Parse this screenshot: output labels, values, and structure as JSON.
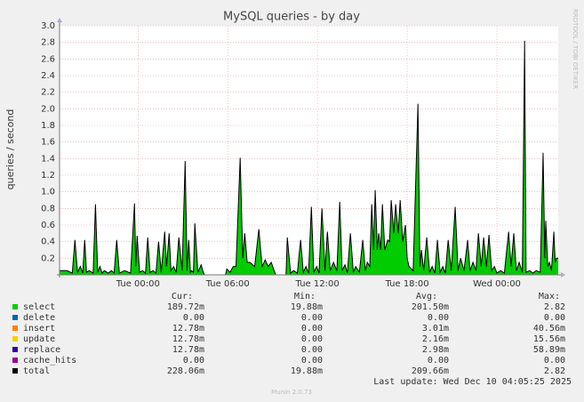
{
  "chart_data": {
    "type": "area",
    "title": "MySQL queries - by day",
    "y_label": "queries / second",
    "watermark": "RRDTOOL / TOBI OETIKER",
    "last_update": "Last update: Wed Dec 10 04:05:25 2025",
    "footer": "Munin 2.0.73",
    "columns": [
      "Cur:",
      "Min:",
      "Avg:",
      "Max:"
    ],
    "grid": true,
    "xlim": [
      -5.25,
      28.1
    ],
    "xticks": [
      {
        "value": 0,
        "label": "Tue 00:00"
      },
      {
        "value": 6,
        "label": "Tue 06:00"
      },
      {
        "value": 12,
        "label": "Tue 12:00"
      },
      {
        "value": 18,
        "label": "Tue 18:00"
      },
      {
        "value": 24,
        "label": "Wed 00:00"
      }
    ],
    "ylim": [
      0,
      3
    ],
    "yticks": [
      0.2,
      0.4,
      0.6,
      0.8,
      {
        "value": 1,
        "label": "1.0"
      },
      1.2,
      1.4,
      1.6,
      1.8,
      {
        "value": 2,
        "label": "2.0"
      },
      2.2,
      2.4,
      2.6,
      2.8,
      {
        "value": 3,
        "label": "3.0"
      }
    ],
    "x": [
      -5.25,
      -5.17,
      -4.75,
      -4.4,
      -4.22,
      -4.05,
      -3.86,
      -3.7,
      -3.57,
      -3.45,
      -3.27,
      -3.0,
      -2.85,
      -2.7,
      -2.55,
      -2.4,
      -2.26,
      -2.0,
      -1.78,
      -1.6,
      -1.43,
      -1.25,
      -0.89,
      -0.5,
      -0.24,
      -0.15,
      -0.06,
      0.1,
      0.3,
      0.5,
      0.65,
      0.8,
      1.01,
      1.2,
      1.37,
      1.55,
      1.78,
      1.9,
      2.08,
      2.2,
      2.38,
      2.55,
      2.73,
      2.95,
      3.15,
      3.28,
      3.39,
      3.5,
      3.57,
      3.7,
      3.8,
      4.0,
      4.22,
      4.4,
      4.46,
      5.85,
      5.94,
      6.15,
      6.36,
      6.55,
      6.83,
      7.0,
      7.13,
      7.3,
      7.49,
      7.8,
      8.08,
      8.3,
      8.5,
      8.7,
      8.91,
      9.1,
      9.21,
      9.9,
      9.98,
      10.2,
      10.4,
      10.65,
      10.87,
      11.05,
      11.23,
      11.4,
      11.59,
      11.75,
      11.94,
      12.1,
      12.3,
      12.5,
      12.66,
      12.85,
      13.07,
      13.3,
      13.49,
      13.65,
      13.84,
      14.0,
      14.2,
      14.4,
      14.56,
      14.8,
      15.03,
      15.2,
      15.33,
      15.5,
      15.63,
      15.75,
      15.86,
      16.0,
      16.1,
      16.22,
      16.34,
      16.5,
      16.7,
      16.82,
      16.93,
      17.1,
      17.23,
      17.4,
      17.53,
      17.7,
      17.88,
      18.0,
      18.12,
      18.4,
      18.72,
      18.85,
      18.95,
      19.1,
      19.31,
      19.5,
      19.67,
      19.85,
      20.02,
      20.2,
      20.38,
      20.55,
      20.74,
      20.95,
      21.21,
      21.4,
      21.57,
      21.8,
      22.04,
      22.2,
      22.4,
      22.6,
      22.76,
      22.95,
      23.11,
      23.3,
      23.47,
      23.65,
      23.83,
      24.0,
      24.24,
      24.5,
      24.78,
      24.95,
      25.13,
      25.3,
      25.49,
      25.7,
      25.85,
      25.95,
      26.2,
      26.4,
      26.62,
      26.9,
      27.09,
      27.2,
      27.27,
      27.4,
      27.51,
      27.65,
      27.81,
      27.9,
      27.99,
      28.1
    ],
    "series": [
      {
        "name": "select",
        "color": "#00cc00",
        "cur": "189.72m",
        "min": "19.88m",
        "avg": "201.50m",
        "max": "2.82",
        "values": [
          0.05,
          0.05,
          0.05,
          0.02,
          0.42,
          0.03,
          0.1,
          0.02,
          0.42,
          0.03,
          0.05,
          0.02,
          0.85,
          0.03,
          0.1,
          0.02,
          0.05,
          0.02,
          0.05,
          0.02,
          0.42,
          0.02,
          0.05,
          0.02,
          0.86,
          0.1,
          0.47,
          0.03,
          0.05,
          0.02,
          0.45,
          0.03,
          0.05,
          0.02,
          0.4,
          0.03,
          0.52,
          0.1,
          0.5,
          0.05,
          0.1,
          0.03,
          0.45,
          0.05,
          1.37,
          0.05,
          0.42,
          0.03,
          0.05,
          0.03,
          0.62,
          0.03,
          0.12,
          0.01,
          0,
          0,
          0.07,
          0.03,
          0.1,
          0.1,
          1.41,
          0.2,
          0.5,
          0.15,
          0.15,
          0.1,
          0.55,
          0.1,
          0.18,
          0.1,
          0.15,
          0.05,
          0,
          0,
          0.45,
          0.02,
          0.05,
          0.02,
          0.42,
          0.03,
          0.1,
          0.02,
          0.82,
          0.03,
          0.1,
          0.02,
          0.8,
          0.05,
          0.52,
          0.05,
          0.15,
          0.05,
          0.88,
          0.05,
          0.12,
          0.02,
          0.5,
          0.03,
          0.1,
          0.03,
          0.42,
          0.05,
          0.15,
          0.1,
          0.85,
          0.3,
          1.02,
          0.3,
          0.5,
          0.3,
          0.85,
          0.3,
          0.42,
          0.4,
          0.9,
          0.5,
          0.85,
          0.5,
          0.9,
          0.4,
          0.6,
          0.2,
          0.1,
          0.05,
          2.06,
          0.1,
          0.3,
          0.05,
          0.45,
          0.03,
          0.1,
          0.02,
          0.42,
          0.03,
          0.1,
          0.02,
          0.42,
          0.05,
          0.82,
          0.05,
          0.2,
          0.05,
          0.42,
          0.05,
          0.15,
          0.05,
          0.5,
          0.1,
          0.45,
          0.1,
          0.48,
          0.05,
          0.1,
          0.02,
          0.05,
          0.02,
          0.52,
          0.1,
          0.5,
          0.05,
          0.15,
          0.03,
          2.82,
          0.03,
          0.05,
          0.02,
          0.05,
          0.03,
          1.47,
          0.2,
          0.65,
          0.1,
          0.15,
          0.05,
          0.52,
          0.15,
          0.2,
          0.2
        ]
      },
      {
        "name": "delete",
        "color": "#0066b3",
        "cur": "0.00",
        "min": "0.00",
        "avg": "0.00",
        "max": "0.00"
      },
      {
        "name": "insert",
        "color": "#ff8000",
        "cur": "12.78m",
        "min": "0.00",
        "avg": "3.01m",
        "max": "40.56m"
      },
      {
        "name": "update",
        "color": "#ffcc00",
        "cur": "12.78m",
        "min": "0.00",
        "avg": "2.16m",
        "max": "15.56m"
      },
      {
        "name": "replace",
        "color": "#330099",
        "cur": "12.78m",
        "min": "0.00",
        "avg": "2.98m",
        "max": "58.89m"
      },
      {
        "name": "cache_hits",
        "color": "#990099",
        "cur": "0.00",
        "min": "0.00",
        "avg": "0.00",
        "max": "0.00"
      },
      {
        "name": "total",
        "color": "#000000",
        "cur": "228.06m",
        "min": "19.88m",
        "avg": "209.66m",
        "max": "2.82",
        "values": [
          0.05,
          0.05,
          0.05,
          0.02,
          0.42,
          0.03,
          0.1,
          0.02,
          0.42,
          0.03,
          0.05,
          0.02,
          0.85,
          0.03,
          0.1,
          0.02,
          0.05,
          0.02,
          0.05,
          0.02,
          0.42,
          0.02,
          0.05,
          0.02,
          0.86,
          0.1,
          0.47,
          0.03,
          0.05,
          0.02,
          0.45,
          0.03,
          0.05,
          0.02,
          0.4,
          0.03,
          0.52,
          0.1,
          0.5,
          0.05,
          0.1,
          0.03,
          0.45,
          0.05,
          1.37,
          0.05,
          0.42,
          0.03,
          0.05,
          0.03,
          0.62,
          0.03,
          0.12,
          0.01,
          0,
          0,
          0.07,
          0.03,
          0.1,
          0.1,
          1.41,
          0.2,
          0.5,
          0.15,
          0.15,
          0.1,
          0.55,
          0.1,
          0.18,
          0.1,
          0.15,
          0.05,
          0,
          0,
          0.45,
          0.02,
          0.05,
          0.02,
          0.42,
          0.03,
          0.1,
          0.02,
          0.82,
          0.03,
          0.1,
          0.02,
          0.8,
          0.05,
          0.52,
          0.05,
          0.15,
          0.05,
          0.88,
          0.05,
          0.12,
          0.02,
          0.5,
          0.03,
          0.1,
          0.03,
          0.42,
          0.05,
          0.15,
          0.1,
          0.85,
          0.3,
          1.02,
          0.3,
          0.5,
          0.3,
          0.85,
          0.3,
          0.42,
          0.4,
          0.9,
          0.5,
          0.85,
          0.5,
          0.9,
          0.4,
          0.6,
          0.2,
          0.1,
          0.05,
          2.06,
          0.1,
          0.3,
          0.05,
          0.45,
          0.03,
          0.1,
          0.02,
          0.42,
          0.03,
          0.1,
          0.02,
          0.42,
          0.05,
          0.82,
          0.05,
          0.2,
          0.05,
          0.42,
          0.05,
          0.15,
          0.05,
          0.5,
          0.1,
          0.45,
          0.1,
          0.48,
          0.05,
          0.1,
          0.02,
          0.05,
          0.02,
          0.52,
          0.1,
          0.5,
          0.05,
          0.15,
          0.03,
          2.82,
          0.03,
          0.05,
          0.02,
          0.05,
          0.03,
          1.47,
          0.2,
          0.65,
          0.1,
          0.15,
          0.05,
          0.52,
          0.15,
          0.2,
          0.2
        ]
      }
    ]
  }
}
